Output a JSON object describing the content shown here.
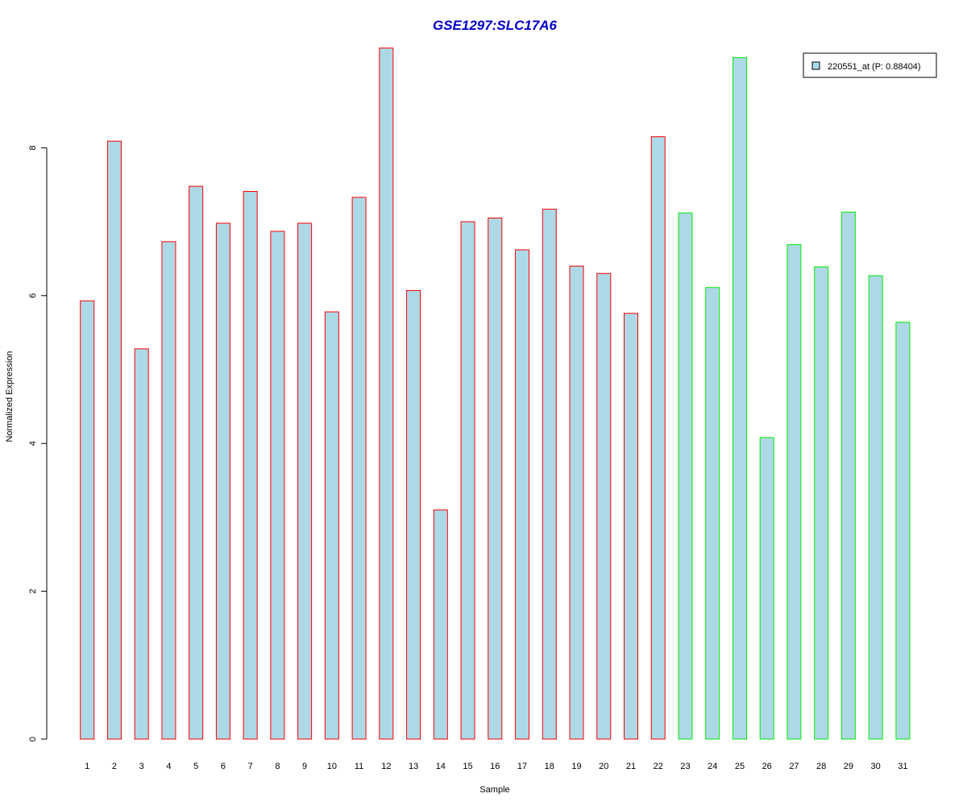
{
  "chart_data": {
    "type": "bar",
    "title": "GSE1297:SLC17A6",
    "title_color": "#0000CC",
    "xlabel": "Sample",
    "ylabel": "Normalized Expression",
    "categories": [
      "1",
      "2",
      "3",
      "4",
      "5",
      "6",
      "7",
      "8",
      "9",
      "10",
      "11",
      "12",
      "13",
      "14",
      "15",
      "16",
      "17",
      "18",
      "19",
      "20",
      "21",
      "22",
      "23",
      "24",
      "25",
      "26",
      "27",
      "28",
      "29",
      "30",
      "31"
    ],
    "series": [
      {
        "name": "220551_at (P: 0.88404)",
        "values": [
          5.93,
          8.09,
          5.28,
          6.73,
          7.48,
          6.98,
          7.41,
          6.87,
          6.98,
          5.78,
          7.33,
          9.35,
          6.07,
          3.1,
          7.0,
          7.05,
          6.62,
          7.17,
          6.4,
          6.3,
          5.76,
          8.15,
          7.12,
          6.11,
          9.22,
          4.08,
          6.69,
          6.39,
          7.13,
          6.27,
          5.64
        ]
      }
    ],
    "bar_fill": "#ADD8E6",
    "bar_outline_colors": [
      "#FF0000",
      "#FF0000",
      "#FF0000",
      "#FF0000",
      "#FF0000",
      "#FF0000",
      "#FF0000",
      "#FF0000",
      "#FF0000",
      "#FF0000",
      "#FF0000",
      "#FF0000",
      "#FF0000",
      "#FF0000",
      "#FF0000",
      "#FF0000",
      "#FF0000",
      "#FF0000",
      "#FF0000",
      "#FF0000",
      "#FF0000",
      "#FF0000",
      "#00EE00",
      "#00EE00",
      "#00EE00",
      "#00EE00",
      "#00EE00",
      "#00EE00",
      "#00EE00",
      "#00EE00",
      "#00EE00"
    ],
    "ylim": [
      0,
      9.5
    ],
    "yticks": [
      "0",
      "2",
      "4",
      "6",
      "8"
    ],
    "legend_placement": "top-right",
    "grid": false
  }
}
